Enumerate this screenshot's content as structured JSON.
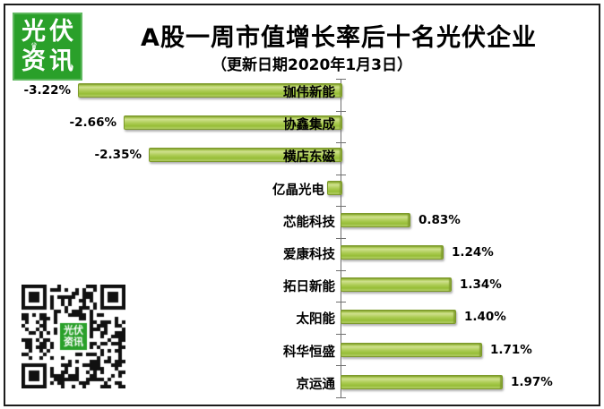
{
  "header": {
    "logo": {
      "line1": "光伏",
      "line2": "资讯",
      "bg_color": "#2aa02a",
      "text_color": "#ffffff"
    },
    "title": "A股一周市值增长率后十名光伏企业",
    "subtitle": "（更新日期2020年1月3日）"
  },
  "chart_data": {
    "type": "bar",
    "orientation": "horizontal",
    "title": "A股一周市值增长率后十名光伏企业",
    "subtitle": "（更新日期2020年1月3日）",
    "unit": "%",
    "categories": [
      "珈伟新能",
      "协鑫集成",
      "横店东磁",
      "亿晶光电",
      "芯能科技",
      "爱康科技",
      "拓日新能",
      "太阳能",
      "科华恒盛",
      "京运通"
    ],
    "values": [
      -3.22,
      -2.66,
      -2.35,
      -0.16,
      0.83,
      1.24,
      1.34,
      1.4,
      1.71,
      1.97
    ],
    "value_labels": [
      "-3.22%",
      "-2.66%",
      "-2.35%",
      "",
      "0.83%",
      "1.24%",
      "1.34%",
      "1.40%",
      "1.71%",
      "1.97%"
    ],
    "bar_color": "#a6c848",
    "bar_border_color": "#7d9a2b",
    "axis_color": "#6f6f6f",
    "xlim": [
      -3.5,
      2.2
    ],
    "baseline_x": 0,
    "grid": false,
    "legend": "none"
  },
  "qr_code": {
    "center_line1": "光伏",
    "center_line2": "资讯",
    "center_bg_color": "#2aa02a"
  }
}
